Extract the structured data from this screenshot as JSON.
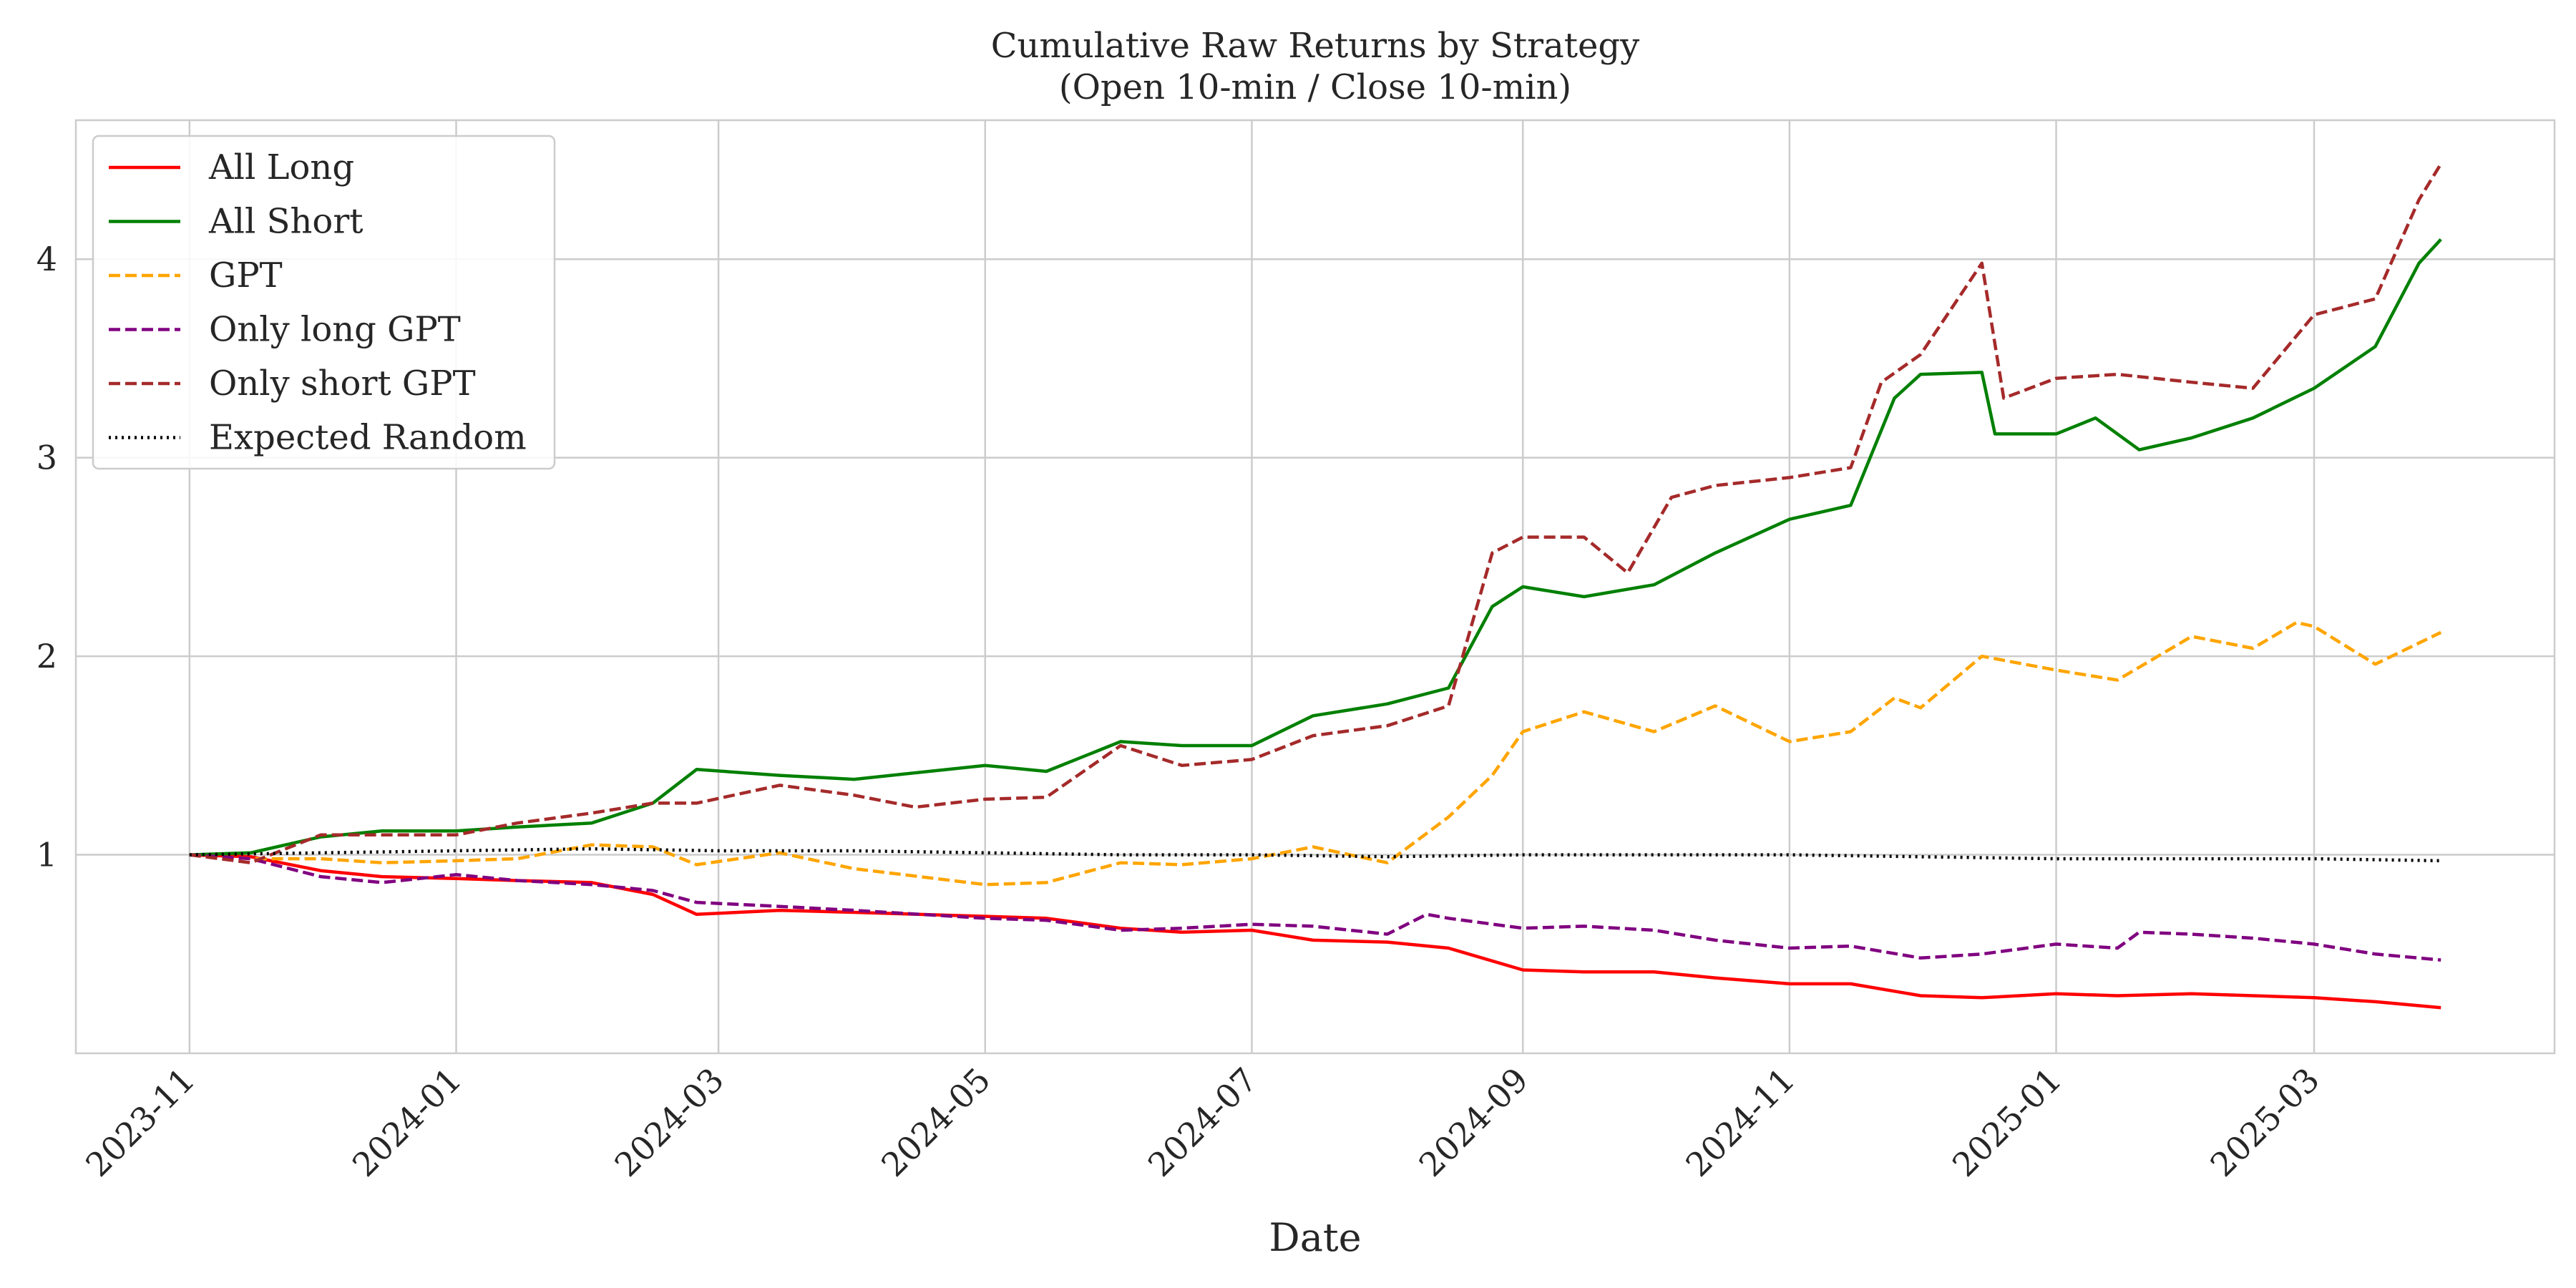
{
  "chart_data": {
    "type": "line",
    "title": "Cumulative Raw Returns by Strategy",
    "subtitle": "(Open 10-min / Close 10-min)",
    "xlabel": "Date",
    "ylabel": "",
    "x_ticks": [
      "2023-11",
      "2024-01",
      "2024-03",
      "2024-05",
      "2024-07",
      "2024-09",
      "2024-11",
      "2025-01",
      "2025-03"
    ],
    "y_ticks": [
      1,
      2,
      3,
      4
    ],
    "xlim": [
      "2023-10-06",
      "2025-04-25"
    ],
    "ylim": [
      0.0,
      4.7
    ],
    "grid": true,
    "legend_position": "top-left",
    "series": [
      {
        "name": "All Long",
        "color": "#ff0000",
        "dash": "solid",
        "points": [
          [
            "2023-11-01",
            1.0
          ],
          [
            "2023-11-15",
            0.99
          ],
          [
            "2023-12-01",
            0.92
          ],
          [
            "2023-12-15",
            0.89
          ],
          [
            "2024-01-01",
            0.88
          ],
          [
            "2024-01-15",
            0.87
          ],
          [
            "2024-02-01",
            0.86
          ],
          [
            "2024-02-15",
            0.8
          ],
          [
            "2024-02-25",
            0.7
          ],
          [
            "2024-03-15",
            0.72
          ],
          [
            "2024-04-01",
            0.71
          ],
          [
            "2024-05-01",
            0.69
          ],
          [
            "2024-05-15",
            0.68
          ],
          [
            "2024-06-01",
            0.63
          ],
          [
            "2024-06-15",
            0.61
          ],
          [
            "2024-07-01",
            0.62
          ],
          [
            "2024-07-15",
            0.57
          ],
          [
            "2024-08-01",
            0.56
          ],
          [
            "2024-08-15",
            0.53
          ],
          [
            "2024-09-01",
            0.42
          ],
          [
            "2024-09-15",
            0.41
          ],
          [
            "2024-10-01",
            0.41
          ],
          [
            "2024-10-15",
            0.38
          ],
          [
            "2024-11-01",
            0.35
          ],
          [
            "2024-11-15",
            0.35
          ],
          [
            "2024-12-01",
            0.29
          ],
          [
            "2024-12-15",
            0.28
          ],
          [
            "2025-01-01",
            0.3
          ],
          [
            "2025-01-15",
            0.29
          ],
          [
            "2025-02-01",
            0.3
          ],
          [
            "2025-02-15",
            0.29
          ],
          [
            "2025-03-01",
            0.28
          ],
          [
            "2025-03-15",
            0.26
          ],
          [
            "2025-03-30",
            0.23
          ]
        ]
      },
      {
        "name": "All Short",
        "color": "#008000",
        "dash": "solid",
        "points": [
          [
            "2023-11-01",
            1.0
          ],
          [
            "2023-11-15",
            1.01
          ],
          [
            "2023-12-01",
            1.09
          ],
          [
            "2023-12-15",
            1.12
          ],
          [
            "2024-01-01",
            1.12
          ],
          [
            "2024-01-15",
            1.14
          ],
          [
            "2024-02-01",
            1.16
          ],
          [
            "2024-02-15",
            1.26
          ],
          [
            "2024-02-25",
            1.43
          ],
          [
            "2024-03-15",
            1.4
          ],
          [
            "2024-04-01",
            1.38
          ],
          [
            "2024-05-01",
            1.45
          ],
          [
            "2024-05-15",
            1.42
          ],
          [
            "2024-06-01",
            1.57
          ],
          [
            "2024-06-15",
            1.55
          ],
          [
            "2024-07-01",
            1.55
          ],
          [
            "2024-07-15",
            1.7
          ],
          [
            "2024-08-01",
            1.76
          ],
          [
            "2024-08-15",
            1.84
          ],
          [
            "2024-08-25",
            2.25
          ],
          [
            "2024-09-01",
            2.35
          ],
          [
            "2024-09-15",
            2.3
          ],
          [
            "2024-10-01",
            2.36
          ],
          [
            "2024-10-15",
            2.52
          ],
          [
            "2024-11-01",
            2.69
          ],
          [
            "2024-11-15",
            2.76
          ],
          [
            "2024-11-25",
            3.3
          ],
          [
            "2024-12-01",
            3.42
          ],
          [
            "2024-12-15",
            3.43
          ],
          [
            "2024-12-18",
            3.12
          ],
          [
            "2025-01-01",
            3.12
          ],
          [
            "2025-01-10",
            3.2
          ],
          [
            "2025-01-20",
            3.04
          ],
          [
            "2025-02-01",
            3.1
          ],
          [
            "2025-02-15",
            3.2
          ],
          [
            "2025-03-01",
            3.35
          ],
          [
            "2025-03-15",
            3.56
          ],
          [
            "2025-03-25",
            3.98
          ],
          [
            "2025-03-30",
            4.1
          ]
        ]
      },
      {
        "name": "GPT",
        "color": "#ffa500",
        "dash": "dashed",
        "points": [
          [
            "2023-11-01",
            1.0
          ],
          [
            "2023-11-15",
            0.98
          ],
          [
            "2023-12-01",
            0.98
          ],
          [
            "2023-12-15",
            0.96
          ],
          [
            "2024-01-01",
            0.97
          ],
          [
            "2024-01-15",
            0.98
          ],
          [
            "2024-02-01",
            1.05
          ],
          [
            "2024-02-15",
            1.04
          ],
          [
            "2024-02-25",
            0.95
          ],
          [
            "2024-03-15",
            1.01
          ],
          [
            "2024-04-01",
            0.93
          ],
          [
            "2024-05-01",
            0.85
          ],
          [
            "2024-05-15",
            0.86
          ],
          [
            "2024-06-01",
            0.96
          ],
          [
            "2024-06-15",
            0.95
          ],
          [
            "2024-07-01",
            0.98
          ],
          [
            "2024-07-15",
            1.04
          ],
          [
            "2024-08-01",
            0.96
          ],
          [
            "2024-08-15",
            1.19
          ],
          [
            "2024-08-25",
            1.4
          ],
          [
            "2024-09-01",
            1.62
          ],
          [
            "2024-09-15",
            1.72
          ],
          [
            "2024-10-01",
            1.62
          ],
          [
            "2024-10-15",
            1.75
          ],
          [
            "2024-11-01",
            1.57
          ],
          [
            "2024-11-15",
            1.62
          ],
          [
            "2024-11-25",
            1.79
          ],
          [
            "2024-12-01",
            1.74
          ],
          [
            "2024-12-15",
            2.0
          ],
          [
            "2025-01-01",
            1.93
          ],
          [
            "2025-01-15",
            1.88
          ],
          [
            "2025-02-01",
            2.1
          ],
          [
            "2025-02-15",
            2.04
          ],
          [
            "2025-02-25",
            2.17
          ],
          [
            "2025-03-01",
            2.15
          ],
          [
            "2025-03-15",
            1.96
          ],
          [
            "2025-03-30",
            2.12
          ]
        ]
      },
      {
        "name": "Only long GPT",
        "color": "#800080",
        "dash": "dashed",
        "points": [
          [
            "2023-11-01",
            1.0
          ],
          [
            "2023-11-15",
            0.98
          ],
          [
            "2023-12-01",
            0.89
          ],
          [
            "2023-12-15",
            0.86
          ],
          [
            "2024-01-01",
            0.9
          ],
          [
            "2024-01-15",
            0.87
          ],
          [
            "2024-02-01",
            0.85
          ],
          [
            "2024-02-15",
            0.82
          ],
          [
            "2024-02-25",
            0.76
          ],
          [
            "2024-03-15",
            0.74
          ],
          [
            "2024-04-01",
            0.72
          ],
          [
            "2024-05-01",
            0.68
          ],
          [
            "2024-05-15",
            0.67
          ],
          [
            "2024-06-01",
            0.62
          ],
          [
            "2024-06-15",
            0.63
          ],
          [
            "2024-07-01",
            0.65
          ],
          [
            "2024-07-15",
            0.64
          ],
          [
            "2024-08-01",
            0.6
          ],
          [
            "2024-08-10",
            0.7
          ],
          [
            "2024-08-15",
            0.68
          ],
          [
            "2024-09-01",
            0.63
          ],
          [
            "2024-09-15",
            0.64
          ],
          [
            "2024-10-01",
            0.62
          ],
          [
            "2024-10-15",
            0.57
          ],
          [
            "2024-11-01",
            0.53
          ],
          [
            "2024-11-15",
            0.54
          ],
          [
            "2024-12-01",
            0.48
          ],
          [
            "2024-12-15",
            0.5
          ],
          [
            "2025-01-01",
            0.55
          ],
          [
            "2025-01-15",
            0.53
          ],
          [
            "2025-01-20",
            0.61
          ],
          [
            "2025-02-01",
            0.6
          ],
          [
            "2025-02-15",
            0.58
          ],
          [
            "2025-03-01",
            0.55
          ],
          [
            "2025-03-15",
            0.5
          ],
          [
            "2025-03-30",
            0.47
          ]
        ]
      },
      {
        "name": "Only short GPT",
        "color": "#a52a2a",
        "dash": "dashed",
        "points": [
          [
            "2023-11-01",
            1.0
          ],
          [
            "2023-11-15",
            0.96
          ],
          [
            "2023-12-01",
            1.1
          ],
          [
            "2023-12-15",
            1.1
          ],
          [
            "2024-01-01",
            1.1
          ],
          [
            "2024-01-15",
            1.16
          ],
          [
            "2024-02-01",
            1.21
          ],
          [
            "2024-02-15",
            1.26
          ],
          [
            "2024-02-25",
            1.26
          ],
          [
            "2024-03-15",
            1.35
          ],
          [
            "2024-04-01",
            1.3
          ],
          [
            "2024-04-15",
            1.24
          ],
          [
            "2024-05-01",
            1.28
          ],
          [
            "2024-05-15",
            1.29
          ],
          [
            "2024-06-01",
            1.55
          ],
          [
            "2024-06-15",
            1.45
          ],
          [
            "2024-07-01",
            1.48
          ],
          [
            "2024-07-15",
            1.6
          ],
          [
            "2024-08-01",
            1.65
          ],
          [
            "2024-08-15",
            1.75
          ],
          [
            "2024-08-25",
            2.52
          ],
          [
            "2024-09-01",
            2.6
          ],
          [
            "2024-09-15",
            2.6
          ],
          [
            "2024-09-25",
            2.42
          ],
          [
            "2024-10-05",
            2.8
          ],
          [
            "2024-10-15",
            2.86
          ],
          [
            "2024-11-01",
            2.9
          ],
          [
            "2024-11-15",
            2.95
          ],
          [
            "2024-11-22",
            3.38
          ],
          [
            "2024-12-01",
            3.52
          ],
          [
            "2024-12-15",
            3.98
          ],
          [
            "2024-12-20",
            3.3
          ],
          [
            "2025-01-01",
            3.4
          ],
          [
            "2025-01-15",
            3.42
          ],
          [
            "2025-02-01",
            3.38
          ],
          [
            "2025-02-15",
            3.35
          ],
          [
            "2025-03-01",
            3.72
          ],
          [
            "2025-03-15",
            3.8
          ],
          [
            "2025-03-25",
            4.3
          ],
          [
            "2025-03-30",
            4.48
          ]
        ]
      },
      {
        "name": "Expected Random",
        "color": "#000000",
        "dash": "dotted",
        "points": [
          [
            "2023-11-01",
            1.0
          ],
          [
            "2023-12-01",
            1.01
          ],
          [
            "2024-01-01",
            1.02
          ],
          [
            "2024-02-01",
            1.03
          ],
          [
            "2024-03-01",
            1.02
          ],
          [
            "2024-04-01",
            1.02
          ],
          [
            "2024-05-01",
            1.01
          ],
          [
            "2024-06-01",
            1.0
          ],
          [
            "2024-07-01",
            1.0
          ],
          [
            "2024-08-01",
            0.99
          ],
          [
            "2024-09-01",
            1.0
          ],
          [
            "2024-10-01",
            1.0
          ],
          [
            "2024-11-01",
            1.0
          ],
          [
            "2024-12-01",
            0.99
          ],
          [
            "2025-01-01",
            0.98
          ],
          [
            "2025-02-01",
            0.98
          ],
          [
            "2025-03-01",
            0.98
          ],
          [
            "2025-03-30",
            0.97
          ]
        ]
      }
    ]
  }
}
